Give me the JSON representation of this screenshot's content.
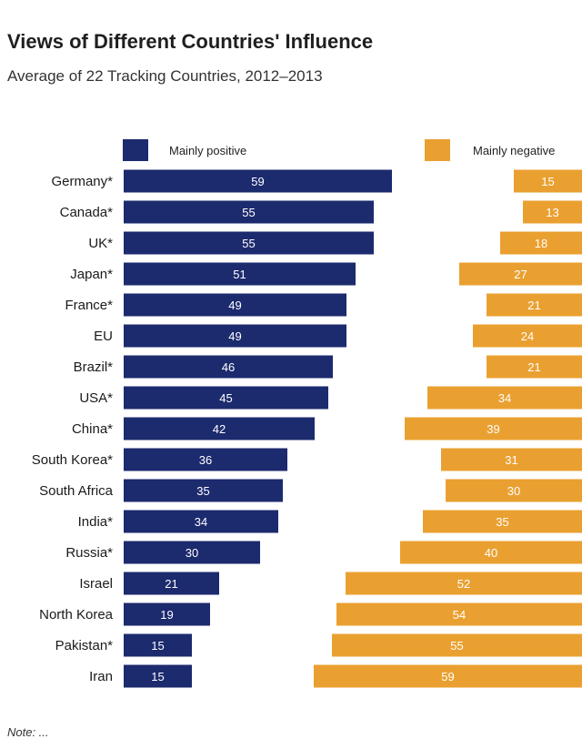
{
  "colors": {
    "positive": "#1c2a6e",
    "negative": "#eaa030"
  },
  "footnote": "Note: ...",
  "chart_data": {
    "type": "bar",
    "title": "Views of Different Countries' Influence",
    "subtitle": "Average of 22 Tracking Countries, 2012–2013",
    "categories": [
      "Germany*",
      "Canada*",
      "UK*",
      "Japan*",
      "France*",
      "EU",
      "Brazil*",
      "USA*",
      "China*",
      "South Korea*",
      "South Africa",
      "India*",
      "Russia*",
      "Israel",
      "North Korea",
      "Pakistan*",
      "Iran"
    ],
    "series": [
      {
        "name": "Mainly positive",
        "values": [
          59,
          55,
          55,
          51,
          49,
          49,
          46,
          45,
          42,
          36,
          35,
          34,
          30,
          21,
          19,
          15,
          15
        ]
      },
      {
        "name": "Mainly negative",
        "values": [
          15,
          13,
          18,
          27,
          21,
          24,
          21,
          34,
          39,
          31,
          30,
          35,
          40,
          52,
          54,
          55,
          59
        ]
      }
    ],
    "xlabel": "",
    "ylabel": "",
    "legend": "top"
  }
}
